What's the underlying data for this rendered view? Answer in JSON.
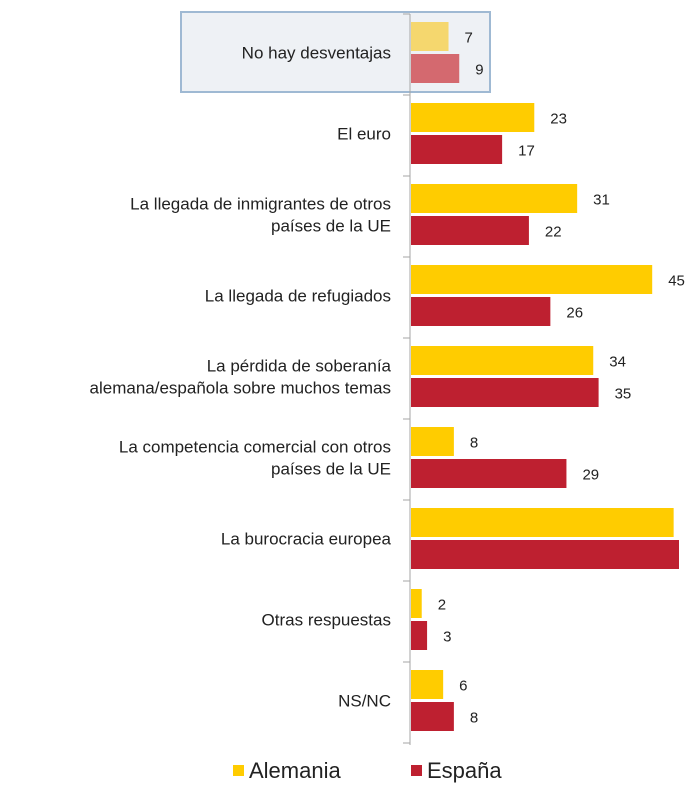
{
  "chart_data": {
    "type": "bar",
    "orientation": "horizontal",
    "categories": [
      [
        "No hay desventajas"
      ],
      [
        "El euro"
      ],
      [
        "La llegada de inmigrantes de otros",
        "países de la UE"
      ],
      [
        "La llegada de refugiados"
      ],
      [
        "La pérdida de soberanía",
        "alemana/española sobre muchos temas"
      ],
      [
        "La competencia comercial con otros",
        "países de la UE"
      ],
      [
        "La burocracia europea"
      ],
      [
        "Otras respuestas"
      ],
      [
        "NS/NC"
      ]
    ],
    "series": [
      {
        "name": "Alemania",
        "color": "#FFCC00",
        "highlight_color": "#F5D76E",
        "values": [
          7,
          23,
          31,
          45,
          34,
          8,
          49,
          2,
          6
        ]
      },
      {
        "name": "España",
        "color": "#BE2030",
        "highlight_color": "#D4696F",
        "values": [
          9,
          17,
          22,
          26,
          35,
          29,
          50,
          3,
          8
        ]
      }
    ],
    "highlighted_category_index": 0,
    "xlim": [
      0,
      50
    ],
    "legend_position": "bottom"
  }
}
